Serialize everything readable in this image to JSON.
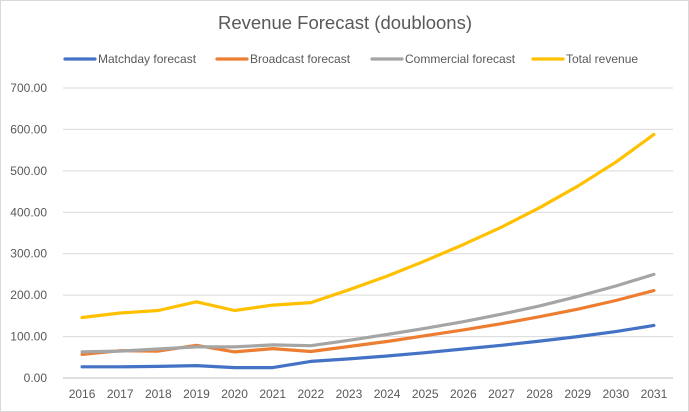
{
  "chart_data": {
    "type": "line",
    "title": "Revenue Forecast (doubloons)",
    "xlabel": "",
    "ylabel": "",
    "ylim": [
      0,
      700
    ],
    "y_ticks": [
      "0.00",
      "100.00",
      "200.00",
      "300.00",
      "400.00",
      "500.00",
      "600.00",
      "700.00"
    ],
    "grid": true,
    "legend_position": "top",
    "categories": [
      "2016",
      "2017",
      "2018",
      "2019",
      "2020",
      "2021",
      "2022",
      "2023",
      "2024",
      "2025",
      "2026",
      "2027",
      "2028",
      "2029",
      "2030",
      "2031"
    ],
    "series": [
      {
        "name": "Matchday forecast",
        "color": "#4472C4",
        "values": [
          27,
          27,
          28,
          30,
          25,
          25,
          40,
          46,
          53,
          61,
          70,
          79,
          89,
          100,
          112,
          127
        ]
      },
      {
        "name": "Broadcast forecast",
        "color": "#ED7D31",
        "values": [
          57,
          66,
          65,
          79,
          63,
          71,
          64,
          76,
          88,
          102,
          116,
          131,
          148,
          166,
          187,
          211
        ]
      },
      {
        "name": "Commercial forecast",
        "color": "#A5A5A5",
        "values": [
          63,
          65,
          70,
          75,
          75,
          80,
          78,
          91,
          105,
          120,
          136,
          154,
          174,
          197,
          222,
          250
        ]
      },
      {
        "name": "Total revenue",
        "color": "#FFC000",
        "values": [
          146,
          157,
          163,
          184,
          163,
          176,
          182,
          213,
          246,
          283,
          322,
          364,
          411,
          463,
          521,
          588
        ]
      }
    ]
  }
}
